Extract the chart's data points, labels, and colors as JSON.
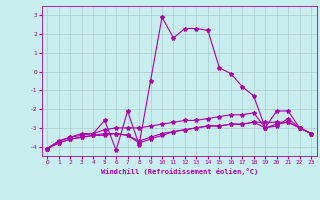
{
  "xlabel": "Windchill (Refroidissement éolien,°C)",
  "bg_color": "#c8eef0",
  "line_color": "#aa00aa",
  "grid_color": "#aacccc",
  "xlim": [
    -0.5,
    23.5
  ],
  "ylim": [
    -4.5,
    3.5
  ],
  "yticks": [
    -4,
    -3,
    -2,
    -1,
    0,
    1,
    2,
    3
  ],
  "xticks": [
    0,
    1,
    2,
    3,
    4,
    5,
    6,
    7,
    8,
    9,
    10,
    11,
    12,
    13,
    14,
    15,
    16,
    17,
    18,
    19,
    20,
    21,
    22,
    23
  ],
  "line1_x": [
    0,
    1,
    2,
    3,
    4,
    5,
    6,
    7,
    8,
    9,
    10,
    11,
    12,
    13,
    14,
    15,
    16,
    17,
    18,
    19,
    20,
    21,
    22,
    23
  ],
  "line1_y": [
    -4.1,
    -3.7,
    -3.5,
    -3.4,
    -3.3,
    -2.6,
    -4.2,
    -2.1,
    -3.9,
    -0.5,
    2.9,
    1.8,
    2.3,
    2.3,
    2.2,
    0.2,
    -0.1,
    -0.8,
    -1.3,
    -3.0,
    -2.1,
    -2.1,
    -3.0,
    -3.3
  ],
  "line2_x": [
    0,
    1,
    2,
    3,
    4,
    5,
    6,
    7,
    8,
    9,
    10,
    11,
    12,
    13,
    14,
    15,
    16,
    17,
    18,
    19,
    20,
    21,
    22,
    23
  ],
  "line2_y": [
    -4.1,
    -3.7,
    -3.5,
    -3.3,
    -3.3,
    -3.1,
    -3.0,
    -3.0,
    -3.0,
    -2.9,
    -2.8,
    -2.7,
    -2.6,
    -2.6,
    -2.5,
    -2.4,
    -2.3,
    -2.3,
    -2.2,
    -3.0,
    -2.9,
    -2.5,
    -3.0,
    -3.3
  ],
  "line3_x": [
    0,
    1,
    2,
    3,
    4,
    5,
    6,
    7,
    8,
    9,
    10,
    11,
    12,
    13,
    14,
    15,
    16,
    17,
    18,
    19,
    20,
    21,
    22,
    23
  ],
  "line3_y": [
    -4.1,
    -3.8,
    -3.6,
    -3.5,
    -3.4,
    -3.3,
    -3.3,
    -3.4,
    -3.7,
    -3.5,
    -3.3,
    -3.2,
    -3.1,
    -3.0,
    -2.9,
    -2.9,
    -2.8,
    -2.8,
    -2.7,
    -2.7,
    -2.7,
    -2.7,
    -3.0,
    -3.3
  ],
  "line4_x": [
    0,
    1,
    2,
    3,
    4,
    5,
    6,
    7,
    8,
    9,
    10,
    11,
    12,
    13,
    14,
    15,
    16,
    17,
    18,
    19,
    20,
    21,
    22,
    23
  ],
  "line4_y": [
    -4.1,
    -3.8,
    -3.6,
    -3.5,
    -3.4,
    -3.4,
    -3.3,
    -3.4,
    -3.8,
    -3.6,
    -3.4,
    -3.2,
    -3.1,
    -3.0,
    -2.9,
    -2.9,
    -2.8,
    -2.8,
    -2.7,
    -3.0,
    -2.8,
    -2.7,
    -3.0,
    -3.3
  ],
  "label_fontsize": 4.5,
  "xlabel_fontsize": 5.0
}
